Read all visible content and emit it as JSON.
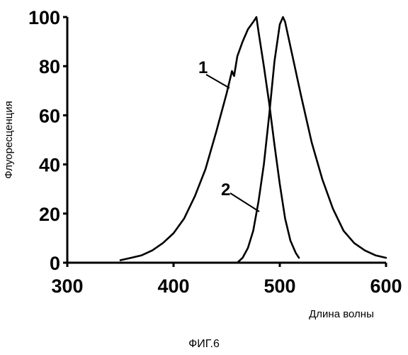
{
  "figure_caption": "ФИГ.6",
  "chart_data": {
    "type": "line",
    "xlabel": "Длина волны",
    "ylabel": "Флуоресценция",
    "xlim": [
      300,
      600
    ],
    "ylim": [
      0,
      100
    ],
    "x_ticks": [
      "300",
      "400",
      "500",
      "600"
    ],
    "y_ticks": [
      "0",
      "20",
      "40",
      "60",
      "80",
      "100"
    ],
    "grid": false,
    "legend": "none",
    "series": [
      {
        "callout": "1",
        "color": "#000000",
        "x": [
          350,
          360,
          370,
          380,
          390,
          400,
          410,
          420,
          430,
          440,
          450,
          455,
          457,
          460,
          465,
          470,
          475,
          478,
          480,
          485,
          490,
          495,
          500,
          505,
          510,
          515,
          518
        ],
        "y": [
          1,
          2,
          3,
          5,
          8,
          12,
          18,
          27,
          38,
          53,
          69,
          78,
          76,
          84,
          90,
          95,
          98,
          100,
          94,
          80,
          65,
          48,
          32,
          18,
          9,
          4,
          2
        ]
      },
      {
        "callout": "2",
        "color": "#000000",
        "x": [
          460,
          465,
          470,
          475,
          480,
          485,
          490,
          495,
          500,
          503,
          505,
          510,
          520,
          530,
          540,
          550,
          560,
          570,
          580,
          590,
          600
        ],
        "y": [
          0,
          2,
          6,
          13,
          25,
          40,
          60,
          82,
          97,
          100,
          98,
          88,
          68,
          49,
          34,
          22,
          13,
          8,
          5,
          3,
          2
        ]
      }
    ]
  }
}
